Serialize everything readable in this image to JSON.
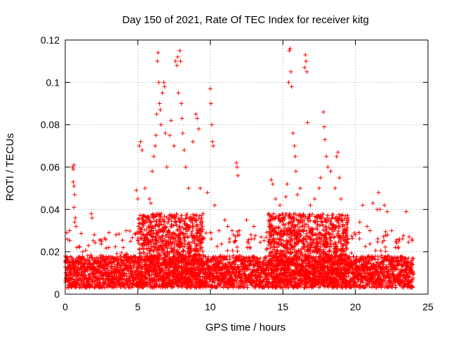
{
  "chart_data": {
    "type": "scatter",
    "title": "Day 150 of 2021, Rate Of TEC Index for receiver kitg",
    "xlabel": "GPS time / hours",
    "ylabel": "ROTI / TECUs",
    "xlim": [
      0,
      25
    ],
    "ylim": [
      0,
      0.12
    ],
    "xticks": [
      0,
      5,
      10,
      15,
      20,
      25
    ],
    "xtick_labels": [
      "0",
      "5",
      "10",
      "15",
      "20",
      "25"
    ],
    "yticks": [
      0,
      0.02,
      0.04,
      0.06,
      0.08,
      0.1,
      0.12
    ],
    "ytick_labels": [
      "0",
      "0.02",
      "0.04",
      "0.06",
      "0.08",
      "0.1",
      "0.12"
    ],
    "grid": true,
    "marker": "+",
    "color": "#ff0000",
    "series": [
      {
        "name": "ROTI",
        "points": [
          [
            0.1,
            0.029
          ],
          [
            0.15,
            0.026
          ],
          [
            0.3,
            0.03
          ],
          [
            0.5,
            0.06
          ],
          [
            0.55,
            0.059
          ],
          [
            0.6,
            0.061
          ],
          [
            0.55,
            0.053
          ],
          [
            0.6,
            0.051
          ],
          [
            0.65,
            0.047
          ],
          [
            0.6,
            0.041
          ],
          [
            0.65,
            0.034
          ],
          [
            0.7,
            0.036
          ],
          [
            0.75,
            0.032
          ],
          [
            0.8,
            0.022
          ],
          [
            1.2,
            0.02
          ],
          [
            1.6,
            0.023
          ],
          [
            1.8,
            0.038
          ],
          [
            1.85,
            0.036
          ],
          [
            2.0,
            0.028
          ],
          [
            2.5,
            0.025
          ],
          [
            3.0,
            0.022
          ],
          [
            3.5,
            0.028
          ],
          [
            4.0,
            0.022
          ],
          [
            4.2,
            0.03
          ],
          [
            4.5,
            0.025
          ],
          [
            4.9,
            0.049
          ],
          [
            5.0,
            0.045
          ],
          [
            5.1,
            0.07
          ],
          [
            5.2,
            0.072
          ],
          [
            5.3,
            0.068
          ],
          [
            5.5,
            0.05
          ],
          [
            5.8,
            0.045
          ],
          [
            5.9,
            0.043
          ],
          [
            6.0,
            0.058
          ],
          [
            6.1,
            0.065
          ],
          [
            6.2,
            0.07
          ],
          [
            6.25,
            0.075
          ],
          [
            6.3,
            0.085
          ],
          [
            6.35,
            0.11
          ],
          [
            6.4,
            0.114
          ],
          [
            6.45,
            0.1
          ],
          [
            6.5,
            0.09
          ],
          [
            6.55,
            0.087
          ],
          [
            6.6,
            0.08
          ],
          [
            6.7,
            0.095
          ],
          [
            6.8,
            0.1
          ],
          [
            6.85,
            0.098
          ],
          [
            6.9,
            0.076
          ],
          [
            7.0,
            0.06
          ],
          [
            7.2,
            0.075
          ],
          [
            7.3,
            0.082
          ],
          [
            7.5,
            0.07
          ],
          [
            7.6,
            0.11
          ],
          [
            7.7,
            0.108
          ],
          [
            7.75,
            0.112
          ],
          [
            7.8,
            0.095
          ],
          [
            7.9,
            0.115
          ],
          [
            7.95,
            0.11
          ],
          [
            8.0,
            0.09
          ],
          [
            8.05,
            0.083
          ],
          [
            8.1,
            0.076
          ],
          [
            8.2,
            0.068
          ],
          [
            8.3,
            0.06
          ],
          [
            8.5,
            0.05
          ],
          [
            8.8,
            0.072
          ],
          [
            9.0,
            0.085
          ],
          [
            9.1,
            0.083
          ],
          [
            9.2,
            0.078
          ],
          [
            9.3,
            0.05
          ],
          [
            9.5,
            0.038
          ],
          [
            9.8,
            0.048
          ],
          [
            10.0,
            0.097
          ],
          [
            10.05,
            0.09
          ],
          [
            10.1,
            0.08
          ],
          [
            10.15,
            0.072
          ],
          [
            10.2,
            0.07
          ],
          [
            10.3,
            0.042
          ],
          [
            10.6,
            0.03
          ],
          [
            11.0,
            0.035
          ],
          [
            11.2,
            0.032
          ],
          [
            11.5,
            0.03
          ],
          [
            11.6,
            0.028
          ],
          [
            11.7,
            0.025
          ],
          [
            11.8,
            0.062
          ],
          [
            11.85,
            0.06
          ],
          [
            11.9,
            0.056
          ],
          [
            12.0,
            0.03
          ],
          [
            12.5,
            0.035
          ],
          [
            12.8,
            0.028
          ],
          [
            13.0,
            0.032
          ],
          [
            13.5,
            0.027
          ],
          [
            14.0,
            0.038
          ],
          [
            14.2,
            0.054
          ],
          [
            14.3,
            0.052
          ],
          [
            14.5,
            0.045
          ],
          [
            14.8,
            0.042
          ],
          [
            15.0,
            0.036
          ],
          [
            15.2,
            0.046
          ],
          [
            15.3,
            0.052
          ],
          [
            15.4,
            0.1
          ],
          [
            15.45,
            0.115
          ],
          [
            15.5,
            0.116
          ],
          [
            15.55,
            0.105
          ],
          [
            15.6,
            0.098
          ],
          [
            15.7,
            0.076
          ],
          [
            15.8,
            0.07
          ],
          [
            15.85,
            0.065
          ],
          [
            15.9,
            0.058
          ],
          [
            16.0,
            0.047
          ],
          [
            16.2,
            0.05
          ],
          [
            16.5,
            0.107
          ],
          [
            16.55,
            0.113
          ],
          [
            16.6,
            0.11
          ],
          [
            16.65,
            0.105
          ],
          [
            16.7,
            0.081
          ],
          [
            16.9,
            0.042
          ],
          [
            17.2,
            0.045
          ],
          [
            17.5,
            0.05
          ],
          [
            17.6,
            0.055
          ],
          [
            17.8,
            0.086
          ],
          [
            17.85,
            0.079
          ],
          [
            17.9,
            0.073
          ],
          [
            18.0,
            0.065
          ],
          [
            18.1,
            0.06
          ],
          [
            18.3,
            0.058
          ],
          [
            18.6,
            0.05
          ],
          [
            18.7,
            0.065
          ],
          [
            18.8,
            0.067
          ],
          [
            18.9,
            0.055
          ],
          [
            19.0,
            0.045
          ],
          [
            19.3,
            0.03
          ],
          [
            19.5,
            0.035
          ],
          [
            20.0,
            0.028
          ],
          [
            20.3,
            0.034
          ],
          [
            20.5,
            0.042
          ],
          [
            20.8,
            0.032
          ],
          [
            21.0,
            0.03
          ],
          [
            21.2,
            0.043
          ],
          [
            21.5,
            0.04
          ],
          [
            21.6,
            0.048
          ],
          [
            21.7,
            0.04
          ],
          [
            22.0,
            0.042
          ],
          [
            22.2,
            0.039
          ],
          [
            22.5,
            0.03
          ],
          [
            23.0,
            0.025
          ],
          [
            23.5,
            0.039
          ],
          [
            23.7,
            0.027
          ],
          [
            23.9,
            0.026
          ]
        ]
      }
    ],
    "background_band": {
      "description": "dense cloud of many small ROTI values covering 0 to 24 hours",
      "typical_range": [
        0.003,
        0.018
      ],
      "active_windows": [
        [
          5.0,
          9.5
        ],
        [
          14.0,
          19.5
        ]
      ]
    }
  }
}
